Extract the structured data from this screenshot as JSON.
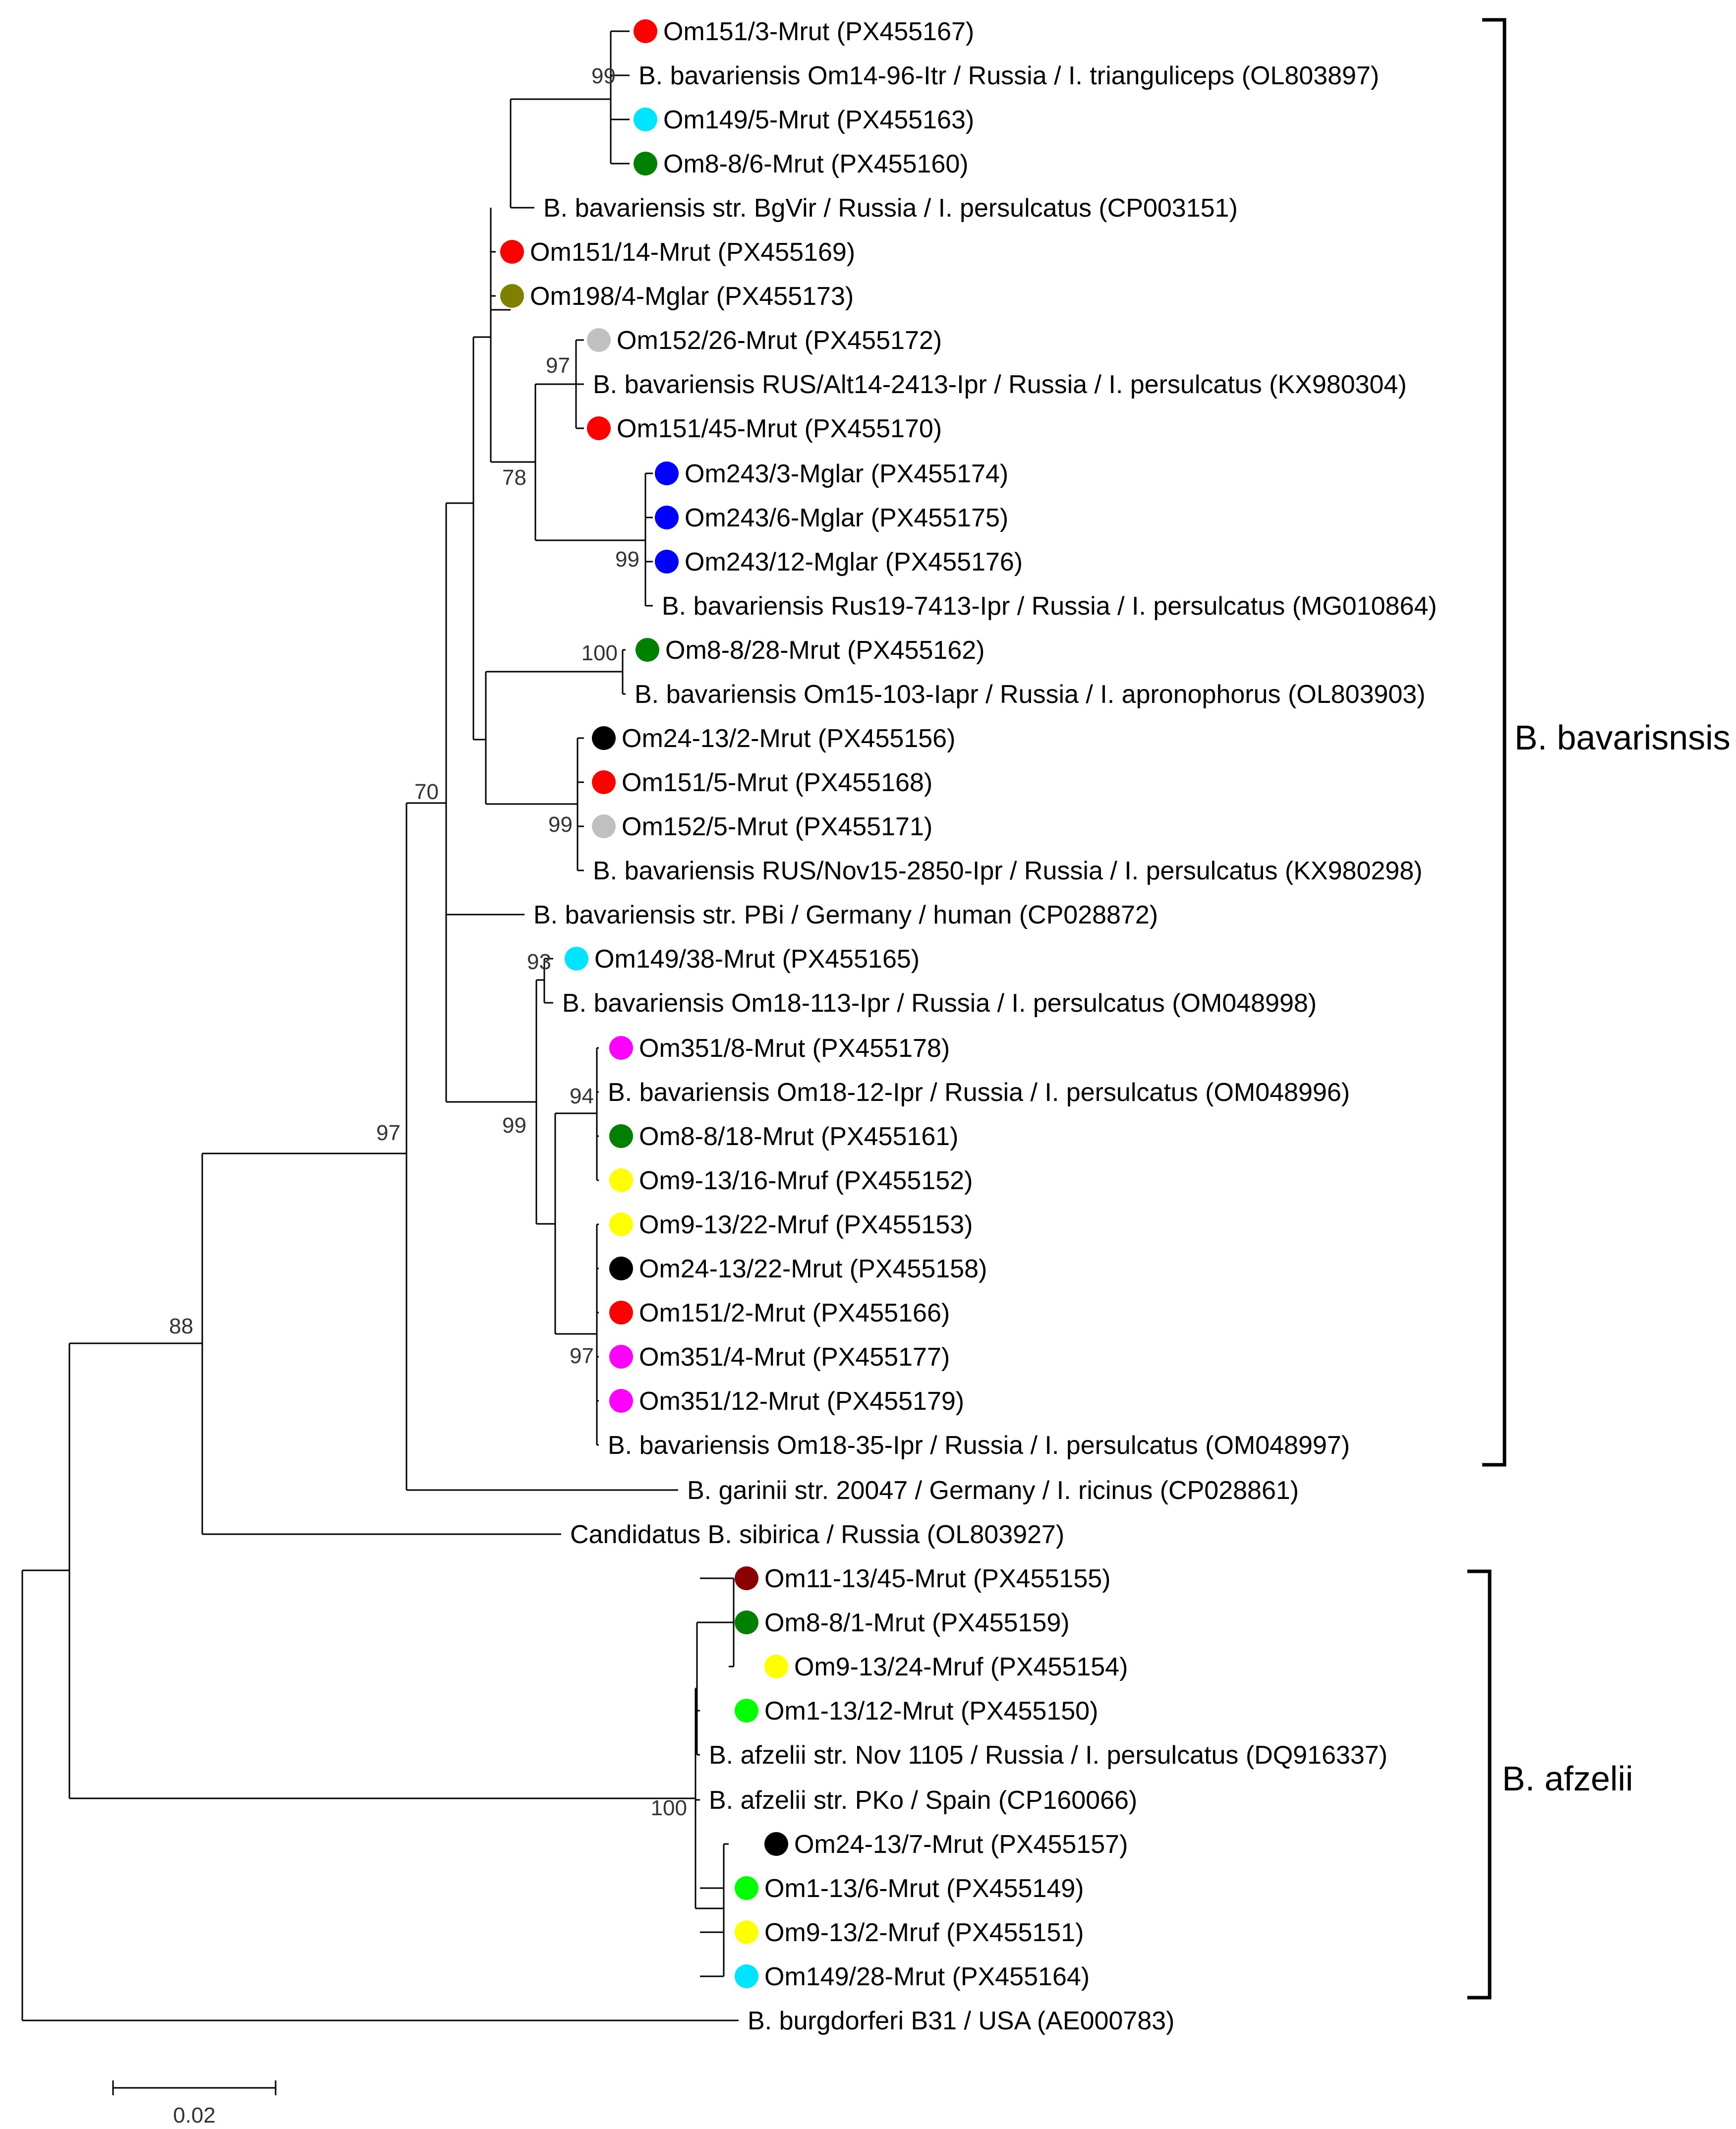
{
  "figure": {
    "leaves": [
      {
        "label": "Om151/3-Mrut (PX455167)",
        "dot": "#ff0000"
      },
      {
        "label": "B. bavariensis Om14-96-Itr / Russia / I. trianguliceps (OL803897)",
        "dot": null
      },
      {
        "label": "Om149/5-Mrut (PX455163)",
        "dot": "#00e5ff"
      },
      {
        "label": "Om8-8/6-Mrut (PX455160)",
        "dot": "#008000"
      },
      {
        "label": "B. bavariensis str. BgVir / Russia / I. persulcatus (CP003151)",
        "dot": null
      },
      {
        "label": "Om151/14-Mrut (PX455169)",
        "dot": "#ff0000"
      },
      {
        "label": "Om198/4-Mglar (PX455173)",
        "dot": "#808000"
      },
      {
        "label": "Om152/26-Mrut (PX455172)",
        "dot": "#c0c0c0"
      },
      {
        "label": "B. bavariensis RUS/Alt14-2413-Ipr / Russia / I. persulcatus (KX980304)",
        "dot": null
      },
      {
        "label": "Om151/45-Mrut (PX455170)",
        "dot": "#ff0000"
      },
      {
        "label": "Om243/3-Mglar (PX455174)",
        "dot": "#0000ff"
      },
      {
        "label": "Om243/6-Mglar (PX455175)",
        "dot": "#0000ff"
      },
      {
        "label": "Om243/12-Mglar (PX455176)",
        "dot": "#0000ff"
      },
      {
        "label": "B. bavariensis Rus19-7413-Ipr / Russia / I. persulcatus (MG010864)",
        "dot": null
      },
      {
        "label": "Om8-8/28-Mrut (PX455162)",
        "dot": "#008000"
      },
      {
        "label": "B. bavariensis Om15-103-Iapr / Russia / I. apronophorus (OL803903)",
        "dot": null
      },
      {
        "label": "Om24-13/2-Mrut (PX455156)",
        "dot": "#000000"
      },
      {
        "label": "Om151/5-Mrut (PX455168)",
        "dot": "#ff0000"
      },
      {
        "label": "Om152/5-Mrut (PX455171)",
        "dot": "#c0c0c0"
      },
      {
        "label": "B. bavariensis RUS/Nov15-2850-Ipr / Russia / I. persulcatus (KX980298)",
        "dot": null
      },
      {
        "label": "B. bavariensis str. PBi / Germany / human (CP028872)",
        "dot": null
      },
      {
        "label": "Om149/38-Mrut (PX455165)",
        "dot": "#00e5ff"
      },
      {
        "label": "B. bavariensis Om18-113-Ipr / Russia / I. persulcatus (OM048998)",
        "dot": null
      },
      {
        "label": "Om351/8-Mrut (PX455178)",
        "dot": "#ff00ff"
      },
      {
        "label": "B. bavariensis Om18-12-Ipr / Russia / I. persulcatus (OM048996)",
        "dot": null
      },
      {
        "label": "Om8-8/18-Mrut (PX455161)",
        "dot": "#008000"
      },
      {
        "label": "Om9-13/16-Mruf (PX455152)",
        "dot": "#ffff00"
      },
      {
        "label": "Om9-13/22-Mruf (PX455153)",
        "dot": "#ffff00"
      },
      {
        "label": "Om24-13/22-Mrut (PX455158)",
        "dot": "#000000"
      },
      {
        "label": "Om151/2-Mrut (PX455166)",
        "dot": "#ff0000"
      },
      {
        "label": "Om351/4-Mrut (PX455177)",
        "dot": "#ff00ff"
      },
      {
        "label": "Om351/12-Mrut (PX455179)",
        "dot": "#ff00ff"
      },
      {
        "label": "B. bavariensis Om18-35-Ipr / Russia / I. persulcatus (OM048997)",
        "dot": null
      },
      {
        "label": "B. garinii str. 20047 / Germany / I. ricinus (CP028861)",
        "dot": null
      },
      {
        "label": "Candidatus B. sibirica / Russia (OL803927)",
        "dot": null
      },
      {
        "label": "Om11-13/45-Mrut (PX455155)",
        "dot": "#8b0000"
      },
      {
        "label": "Om8-8/1-Mrut (PX455159)",
        "dot": "#008000"
      },
      {
        "label": "Om9-13/24-Mruf (PX455154)",
        "dot": "#ffff00"
      },
      {
        "label": "Om1-13/12-Mrut (PX455150)",
        "dot": "#00ff00"
      },
      {
        "label": "B. afzelii str. Nov 1105 / Russia / I. persulcatus (DQ916337)",
        "dot": null
      },
      {
        "label": "B. afzelii str. PKo / Spain (CP160066)",
        "dot": null
      },
      {
        "label": "Om24-13/7-Mrut (PX455157)",
        "dot": "#000000"
      },
      {
        "label": "Om1-13/6-Mrut (PX455149)",
        "dot": "#00ff00"
      },
      {
        "label": "Om9-13/2-Mruf (PX455151)",
        "dot": "#ffff00"
      },
      {
        "label": "Om149/28-Mrut (PX455164)",
        "dot": "#00e5ff"
      },
      {
        "label": "B. burgdorferi B31 / USA (AE000783)",
        "dot": null
      }
    ],
    "bootstrap": [
      "99",
      "97",
      "78",
      "99",
      "100",
      "99",
      "70",
      "93",
      "94",
      "99",
      "97",
      "97",
      "88",
      "100"
    ],
    "clades": [
      {
        "name": "B. bavarisnsis"
      },
      {
        "name": "B. afzelii"
      }
    ],
    "scale_bar": {
      "label": "0.02"
    }
  }
}
